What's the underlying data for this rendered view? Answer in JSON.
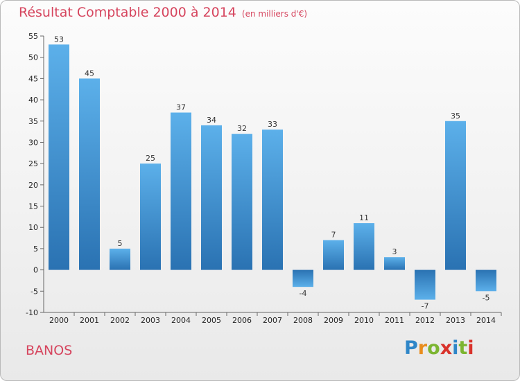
{
  "title": "Résultat Comptable 2000 à 2014",
  "unit": "(en milliers d'€)",
  "city": "BANOS",
  "logo": {
    "letters": [
      "P",
      "r",
      "o",
      "x",
      "i",
      "t",
      "i"
    ],
    "colors": [
      "#2f86c8",
      "#e98c1c",
      "#7cb531",
      "#d9322b",
      "#2f86c8",
      "#7cb531",
      "#d9322b"
    ]
  },
  "colors": {
    "bar": "#3a8fd4",
    "bar_light": "#5cb0ea",
    "bar_dark": "#2a72b2",
    "title": "#d6455e"
  },
  "chart_data": {
    "type": "bar",
    "title": "Résultat Comptable 2000 à 2014",
    "ylabel": "(en milliers d'€)",
    "categories": [
      "2000",
      "2001",
      "2002",
      "2003",
      "2004",
      "2005",
      "2006",
      "2007",
      "2008",
      "2009",
      "2010",
      "2011",
      "2012",
      "2013",
      "2014"
    ],
    "values": [
      53,
      45,
      5,
      25,
      37,
      34,
      32,
      33,
      -4,
      7,
      11,
      3,
      -7,
      35,
      -5
    ],
    "ylim": [
      -10,
      55
    ],
    "yticks": [
      -10,
      -5,
      0,
      5,
      10,
      15,
      20,
      25,
      30,
      35,
      40,
      45,
      50,
      55
    ],
    "grid": false
  }
}
